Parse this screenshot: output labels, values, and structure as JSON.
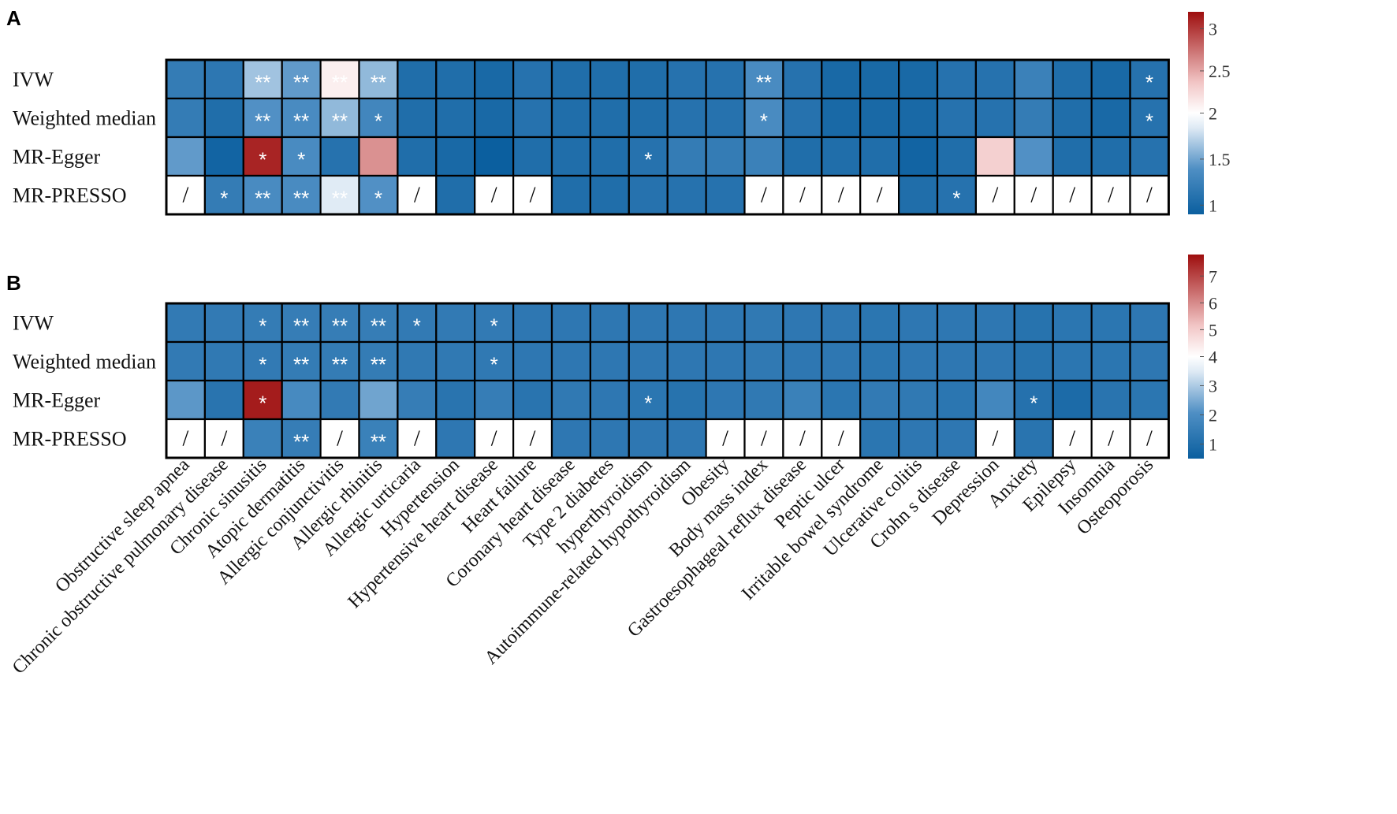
{
  "legend_colors": {
    "dark_blue": "#0b5f9f",
    "mid_blue": "#4f8fc4",
    "pale_blue": "#dde9f4",
    "white": "#ffffff",
    "pale_red": "#f2c6c6",
    "dark_red": "#9e0e0e"
  },
  "chart_data": [
    {
      "type": "heatmap",
      "panel_label": "A",
      "rows": [
        "IVW",
        "Weighted median",
        "MR-Egger",
        "MR-PRESSO"
      ],
      "columns": [
        "Obstructive sleep apnea",
        "Chronic obstructive pulmonary disease",
        "Chronic sinusitis",
        "Atopic dermatitis",
        "Allergic conjunctivitis",
        "Allergic rhinitis",
        "Allergic urticaria",
        "Hypertension",
        "Hypertensive heart disease",
        "Heart failure",
        "Coronary heart disease",
        "Type 2 diabetes",
        "hyperthyroidism",
        "Autoimmune-related hypothyroidism",
        "Obesity",
        "Body mass index",
        "Gastroesophageal reflux disease",
        "Peptic ulcer",
        "Irritable bowel syndrome",
        "Ulcerative colitis",
        "Crohn s disease",
        "Depression",
        "Anxiety",
        "Epilepsy",
        "Insomnia",
        "Osteoporosis"
      ],
      "values": [
        [
          1.2,
          1.15,
          1.65,
          1.45,
          2.1,
          1.6,
          1.05,
          1.05,
          1.0,
          1.1,
          1.05,
          1.05,
          1.05,
          1.1,
          1.1,
          1.35,
          1.1,
          1.0,
          1.0,
          1.0,
          1.1,
          1.1,
          1.25,
          1.05,
          1.0,
          1.1
        ],
        [
          1.2,
          1.05,
          1.4,
          1.35,
          1.6,
          1.3,
          1.05,
          1.05,
          1.0,
          1.1,
          1.05,
          1.05,
          1.05,
          1.1,
          1.1,
          1.35,
          1.1,
          1.0,
          1.0,
          1.0,
          1.1,
          1.1,
          1.2,
          1.05,
          1.0,
          1.1
        ],
        [
          1.45,
          0.95,
          3.1,
          1.35,
          1.1,
          2.6,
          1.05,
          1.0,
          0.9,
          1.05,
          1.05,
          1.05,
          1.1,
          1.2,
          1.2,
          1.25,
          1.05,
          1.05,
          1.05,
          0.95,
          1.05,
          2.3,
          1.4,
          1.05,
          1.05,
          1.1
        ],
        [
          null,
          1.2,
          1.35,
          1.35,
          1.85,
          1.4,
          null,
          1.05,
          null,
          null,
          1.05,
          1.05,
          1.1,
          1.1,
          1.1,
          null,
          null,
          null,
          null,
          1.05,
          1.1,
          null,
          null,
          null,
          null,
          null
        ]
      ],
      "significance": [
        [
          "",
          "",
          "**",
          "**",
          "**",
          "**",
          "",
          "",
          "",
          "",
          "",
          "",
          "",
          "",
          "",
          "**",
          "",
          "",
          "",
          "",
          "",
          "",
          "",
          "",
          "",
          "*"
        ],
        [
          "",
          "",
          "**",
          "**",
          "**",
          "*",
          "",
          "",
          "",
          "",
          "",
          "",
          "",
          "",
          "",
          "*",
          "",
          "",
          "",
          "",
          "",
          "",
          "",
          "",
          "",
          "*"
        ],
        [
          "",
          "",
          "*",
          "*",
          "",
          "",
          "",
          "",
          "",
          "",
          "",
          "",
          "*",
          "",
          "",
          "",
          "",
          "",
          "",
          "",
          "",
          "",
          "",
          "",
          "",
          ""
        ],
        [
          "/",
          "*",
          "**",
          "**",
          "**",
          "*",
          "/",
          "",
          "/",
          "/",
          "",
          "",
          "",
          "",
          "",
          "/",
          "/",
          "/",
          "/",
          "",
          "*",
          "/",
          "/",
          "/",
          "/",
          "/"
        ]
      ],
      "colorbar": {
        "min": 0.9,
        "mid": 2.0,
        "max": 3.2,
        "ticks": [
          1,
          1.5,
          2,
          2.5,
          3
        ],
        "tick_labels": [
          "1",
          "1.5",
          "2",
          "2.5",
          "3"
        ]
      }
    },
    {
      "type": "heatmap",
      "panel_label": "B",
      "rows": [
        "IVW",
        "Weighted median",
        "MR-Egger",
        "MR-PRESSO"
      ],
      "columns": [
        "Obstructive sleep apnea",
        "Chronic obstructive pulmonary disease",
        "Chronic sinusitis",
        "Atopic dermatitis",
        "Allergic conjunctivitis",
        "Allergic rhinitis",
        "Allergic urticaria",
        "Hypertension",
        "Hypertensive heart disease",
        "Heart failure",
        "Coronary heart disease",
        "Type 2 diabetes",
        "hyperthyroidism",
        "Autoimmune-related hypothyroidism",
        "Obesity",
        "Body mass index",
        "Gastroesophageal reflux disease",
        "Peptic ulcer",
        "Irritable bowel syndrome",
        "Ulcerative colitis",
        "Crohn s disease",
        "Depression",
        "Anxiety",
        "Epilepsy",
        "Insomnia",
        "Osteoporosis"
      ],
      "values": [
        [
          1.4,
          1.4,
          1.45,
          1.5,
          1.5,
          1.5,
          1.4,
          1.4,
          1.4,
          1.3,
          1.3,
          1.3,
          1.3,
          1.3,
          1.3,
          1.35,
          1.3,
          1.3,
          1.25,
          1.3,
          1.3,
          1.3,
          1.15,
          1.25,
          1.25,
          1.3
        ],
        [
          1.4,
          1.35,
          1.4,
          1.45,
          1.45,
          1.45,
          1.35,
          1.35,
          1.35,
          1.3,
          1.3,
          1.3,
          1.3,
          1.3,
          1.3,
          1.35,
          1.3,
          1.3,
          1.25,
          1.3,
          1.3,
          1.3,
          1.15,
          1.25,
          1.25,
          1.3
        ],
        [
          2.2,
          1.2,
          7.6,
          1.9,
          1.4,
          2.4,
          1.5,
          1.2,
          1.5,
          1.2,
          1.35,
          1.3,
          1.25,
          1.15,
          1.3,
          1.35,
          1.6,
          1.25,
          1.4,
          1.35,
          1.25,
          1.8,
          1.1,
          0.9,
          1.2,
          1.25
        ],
        [
          null,
          null,
          1.6,
          1.5,
          null,
          1.6,
          null,
          1.3,
          null,
          null,
          1.3,
          1.3,
          1.3,
          1.3,
          null,
          null,
          null,
          null,
          1.25,
          1.3,
          1.3,
          null,
          1.2,
          null,
          null,
          null
        ]
      ],
      "significance": [
        [
          "",
          "",
          "*",
          "**",
          "**",
          "**",
          "*",
          "",
          "*",
          "",
          "",
          "",
          "",
          "",
          "",
          "",
          "",
          "",
          "",
          "",
          "",
          "",
          "",
          "",
          "",
          ""
        ],
        [
          "",
          "",
          "*",
          "**",
          "**",
          "**",
          "",
          "",
          "*",
          "",
          "",
          "",
          "",
          "",
          "",
          "",
          "",
          "",
          "",
          "",
          "",
          "",
          "",
          "",
          "",
          ""
        ],
        [
          "",
          "",
          "*",
          "",
          "",
          "",
          "",
          "",
          "",
          "",
          "",
          "",
          "*",
          "",
          "",
          "",
          "",
          "",
          "",
          "",
          "",
          "",
          "*",
          "",
          "",
          ""
        ],
        [
          "/",
          "/",
          "",
          "**",
          "/",
          "**",
          "/",
          "",
          "/",
          "/",
          "",
          "",
          "",
          "",
          "/",
          "/",
          "/",
          "/",
          "",
          "",
          "",
          "/",
          "",
          "/",
          "/",
          "/"
        ]
      ],
      "colorbar": {
        "min": 0.5,
        "mid": 4.0,
        "max": 7.8,
        "ticks": [
          1,
          2,
          3,
          4,
          5,
          6,
          7
        ],
        "tick_labels": [
          "1",
          "2",
          "3",
          "4",
          "5",
          "6",
          "7"
        ]
      }
    }
  ]
}
